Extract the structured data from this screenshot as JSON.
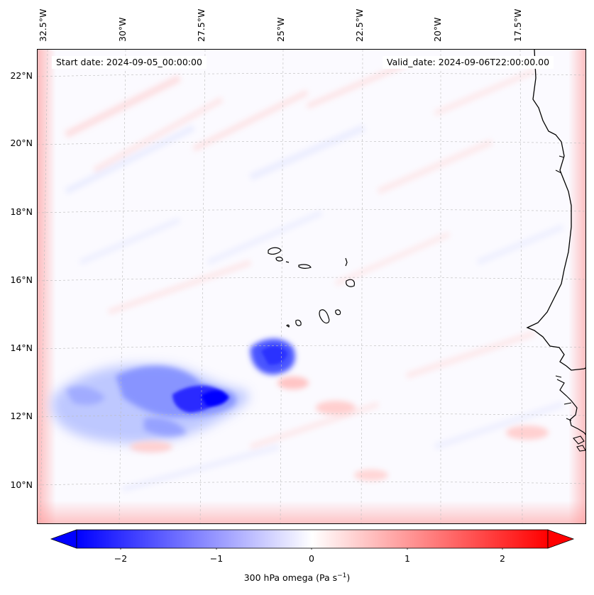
{
  "header": {
    "start_date": "Start date: 2024-09-05_00:00:00",
    "valid_date": "Valid_date: 2024-09-06T22:00:00.00"
  },
  "longitude_labels": [
    "32.5°W",
    "30°W",
    "27.5°W",
    "25°W",
    "22.5°W",
    "20°W",
    "17.5°W"
  ],
  "latitude_labels": [
    "22°N",
    "20°N",
    "18°N",
    "16°N",
    "14°N",
    "12°N",
    "10°N"
  ],
  "colorbar": {
    "label_main": "300 hPa omega (Pa s",
    "label_exp": "−1",
    "label_close": ")",
    "ticks": [
      "−2",
      "−1",
      "0",
      "1",
      "2"
    ],
    "range": [
      -2.6,
      2.6
    ],
    "colormap": "bwr",
    "extend": "both"
  },
  "colors": {
    "negative": "#0000ff",
    "neutral": "#ffffff",
    "positive": "#ff0000",
    "coastline": "#000000",
    "gridline": "#bbbbbb"
  },
  "map": {
    "field": "300 hPa omega",
    "features": [
      "coastline-west-africa",
      "cape-verde-islands"
    ],
    "gridlines": "dashed"
  }
}
